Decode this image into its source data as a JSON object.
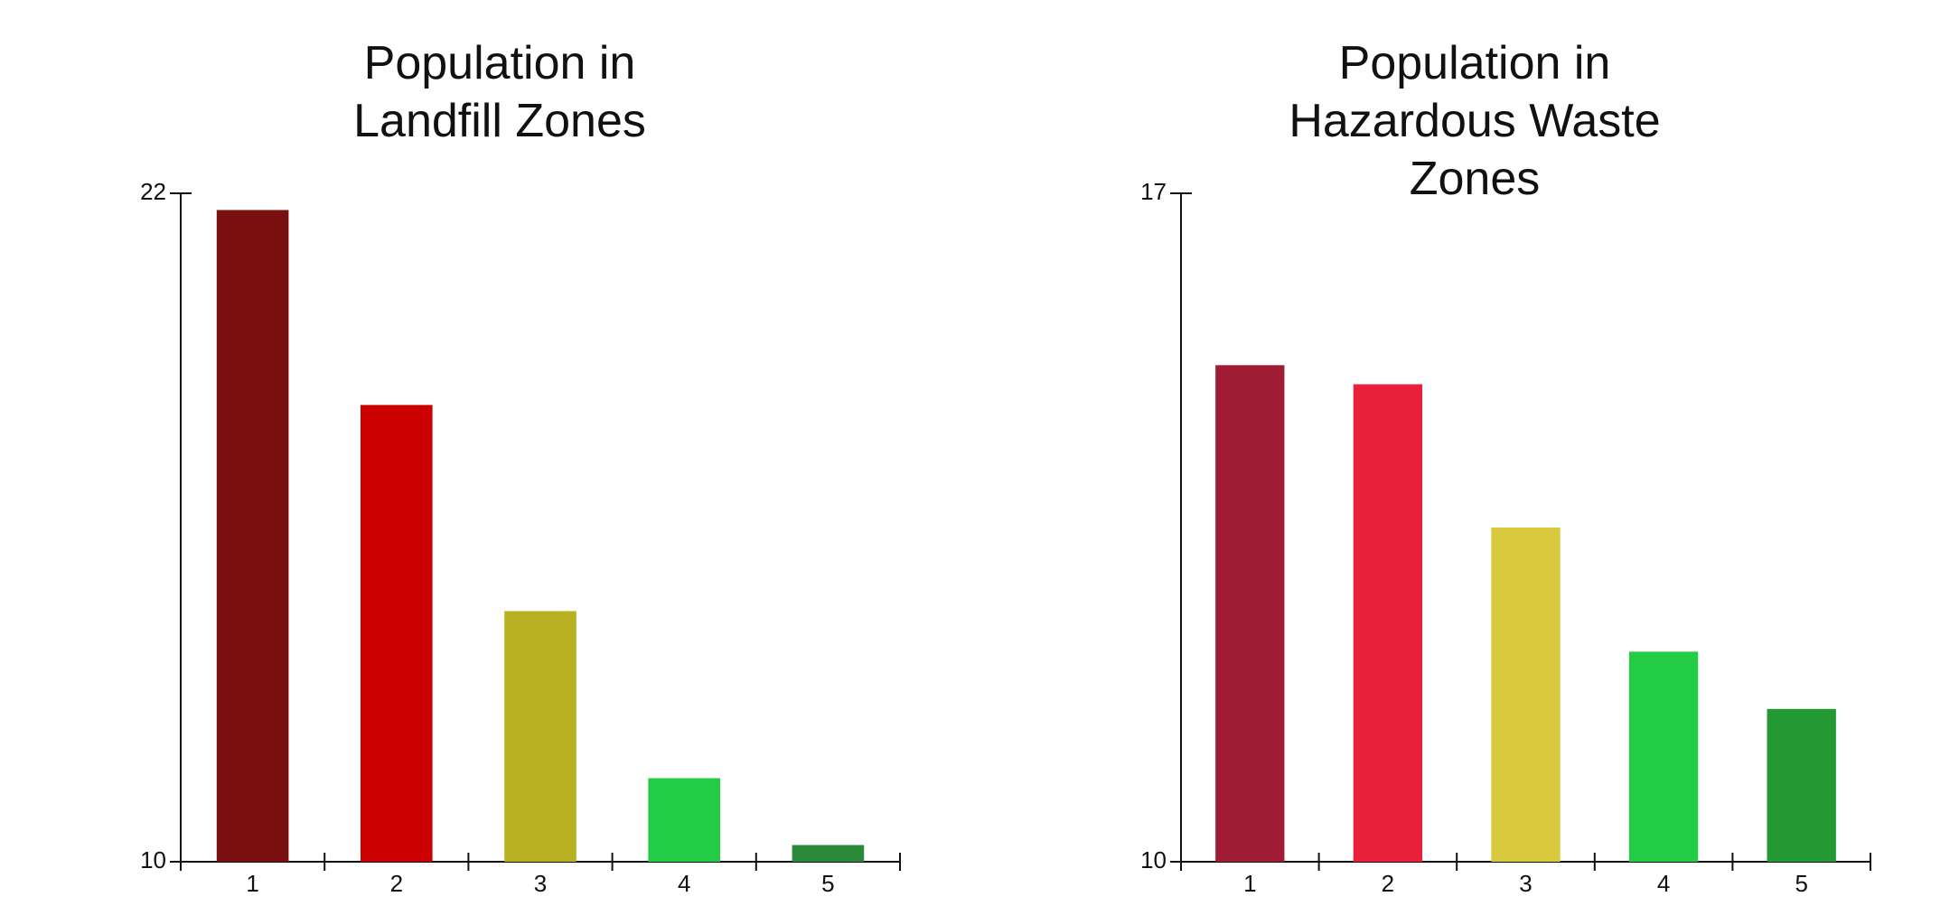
{
  "chart_data": [
    {
      "type": "bar",
      "title": "Population in Landfill Zones",
      "categories": [
        "1",
        "2",
        "3",
        "4",
        "5"
      ],
      "values": [
        21.7,
        18.2,
        14.5,
        11.5,
        10.3
      ],
      "colors": [
        "#7a0f0f",
        "#cc0000",
        "#b8b020",
        "#22cc44",
        "#2a8a3a"
      ],
      "ylim": [
        10,
        22
      ],
      "yticks": [
        10,
        22
      ]
    },
    {
      "type": "bar",
      "title": "Population in Hazardous Waste Zones",
      "categories": [
        "1",
        "2",
        "3",
        "4",
        "5"
      ],
      "values": [
        15.2,
        15.0,
        13.5,
        12.2,
        11.6
      ],
      "colors": [
        "#a01c35",
        "#e8203a",
        "#d8c83c",
        "#22cc44",
        "#229933"
      ],
      "ylim": [
        10,
        17
      ],
      "yticks": [
        10,
        17
      ]
    }
  ]
}
